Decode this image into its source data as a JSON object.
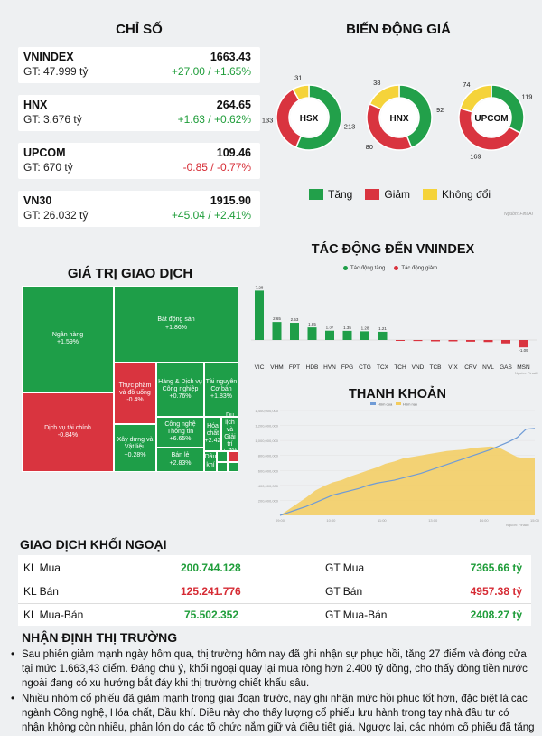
{
  "indices": {
    "title": "CHỈ SỐ",
    "items": [
      {
        "name": "VNINDEX",
        "gt": "GT: 47.999 tỷ",
        "value": "1663.43",
        "change": "+27.00 / +1.65%",
        "dir": "up"
      },
      {
        "name": "HNX",
        "gt": "GT: 3.676 tỷ",
        "value": "264.65",
        "change": "+1.63 / +0.62%",
        "dir": "up"
      },
      {
        "name": "UPCOM",
        "gt": "GT: 670 tỷ",
        "value": "109.46",
        "change": "-0.85 / -0.77%",
        "dir": "down"
      },
      {
        "name": "VN30",
        "gt": "GT: 26.032 tỷ",
        "value": "1915.90",
        "change": "+45.04 / +2.41%",
        "dir": "up"
      }
    ]
  },
  "price_movement": {
    "title": "BIẾN ĐỘNG GIÁ",
    "legend": {
      "up": "Tăng",
      "down": "Giảm",
      "flat": "Không đổi"
    },
    "source": "Nguồn: FinaAI",
    "colors": {
      "up": "#22a04a",
      "down": "#d9343f",
      "flat": "#f5d33a"
    }
  },
  "trading_value": {
    "title": "GIÁ TRỊ GIAO DỊCH",
    "tiles": [
      {
        "label": "Ngân hàng",
        "pct": "+1.59%",
        "color": "#1e9e48"
      },
      {
        "label": "Bất động sản",
        "pct": "+1.86%",
        "color": "#1e9e48"
      },
      {
        "label": "Dịch vụ tài chính",
        "pct": "-0.84%",
        "color": "#d9343f"
      },
      {
        "label": "Thực phẩm và đồ uống",
        "pct": "-0.4%",
        "color": "#d9343f"
      },
      {
        "label": "Hàng & Dịch vụ Công nghiệp",
        "pct": "+0.76%",
        "color": "#1e9e48"
      },
      {
        "label": "Tài nguyên Cơ bản",
        "pct": "+1.83%",
        "color": "#1e9e48"
      },
      {
        "label": "Xây dựng và Vật liệu",
        "pct": "+0.28%",
        "color": "#1e9e48"
      },
      {
        "label": "Công nghệ Thông tin",
        "pct": "+6.65%",
        "color": "#1e9e48"
      },
      {
        "label": "Hóa chất",
        "pct": "+2.42",
        "color": "#1e9e48"
      },
      {
        "label": "Du lịch và Giải trí",
        "pct": "+.7%",
        "color": "#1e9e48"
      },
      {
        "label": "Bán lẻ",
        "pct": "+2.83%",
        "color": "#1e9e48"
      },
      {
        "label": "Dầu khí",
        "pct": "",
        "color": "#1e9e48"
      },
      {
        "label": "",
        "pct": "",
        "color": "#1e9e48"
      },
      {
        "label": "",
        "pct": "",
        "color": "#d9343f"
      },
      {
        "label": "",
        "pct": "",
        "color": "#1e9e48"
      },
      {
        "label": "",
        "pct": "",
        "color": "#1e9e48"
      }
    ]
  },
  "impact": {
    "title": "TÁC ĐỘNG ĐẾN VNINDEX",
    "legend": {
      "up": "Tác động tăng",
      "down": "Tác động giảm"
    },
    "source": "Nguồn: FinaAI",
    "colors": {
      "up": "#1e9e48",
      "down": "#d9343f"
    }
  },
  "liquidity": {
    "title": "THANH KHOẢN",
    "legend": [
      "Hôm qua",
      "Hôm nay"
    ],
    "source": "Nguồn: FinaAI",
    "colors": {
      "today": "#f3cc5e",
      "yesterday": "#6f9bd6"
    }
  },
  "foreign": {
    "title": "GIAO DỊCH KHỐI NGOẠI",
    "rows": [
      {
        "l1": "KL Mua",
        "v1": "200.744.128",
        "c1": "up",
        "l2": "GT Mua",
        "v2": "7365.66 tỷ",
        "c2": "up"
      },
      {
        "l1": "KL Bán",
        "v1": "125.241.776",
        "c1": "down",
        "l2": "GT Bán",
        "v2": "4957.38 tỷ",
        "c2": "down"
      },
      {
        "l1": "KL Mua-Bán",
        "v1": "75.502.352",
        "c1": "up",
        "l2": "GT Mua-Bán",
        "v2": "2408.27 tỷ",
        "c2": "up"
      }
    ]
  },
  "commentary": {
    "title": "NHẬN ĐỊNH THỊ TRƯỜNG",
    "bullets": [
      "Sau phiên giảm mạnh ngày hôm qua, thị trường hôm nay đã ghi nhận sự phục hồi, tăng 27 điểm và đóng cửa tại mức 1.663,43 điểm. Đáng chú ý, khối ngoại quay lại mua ròng hơn 2.400 tỷ đồng, cho thấy dòng tiền nước ngoài đang có xu hướng bắt đáy khi thị trường chiết khấu sâu.",
      "Nhiều nhóm cổ phiếu đã giảm mạnh trong giai đoạn trước, nay ghi nhận mức hồi phục tốt hơn, đặc biệt là các ngành Công nghệ, Hóa chất, Dầu khí. Điều này cho thấy lượng cổ phiếu lưu hành trong tay nhà đầu tư có nhận không còn nhiều, phần lớn do các tổ chức nắm giữ và điều tiết giá. Ngược lại, các nhóm cổ phiếu đã tăng"
    ]
  },
  "chart_data": [
    {
      "type": "pie",
      "title": "",
      "series": [
        {
          "name": "HSX",
          "values": [
            213,
            133,
            31
          ]
        },
        {
          "name": "HNX",
          "values": [
            92,
            80,
            38
          ]
        },
        {
          "name": "UPCOM",
          "values": [
            119,
            169,
            74
          ]
        }
      ],
      "categories": [
        "Tăng",
        "Giảm",
        "Không đổi"
      ]
    },
    {
      "type": "bar",
      "title": "TÁC ĐỘNG ĐẾN VNINDEX",
      "categories": [
        "VIC",
        "VHM",
        "FPT",
        "HDB",
        "HVN",
        "FPG",
        "CTG",
        "TCX",
        "TCH",
        "VND",
        "TCB",
        "VIX",
        "CRV",
        "NVL",
        "GAS",
        "MSN"
      ],
      "values": [
        7.28,
        2.65,
        2.53,
        1.85,
        1.37,
        1.35,
        1.28,
        1.21,
        -0.05,
        -0.15,
        -0.2,
        -0.2,
        -0.25,
        -0.3,
        -0.5,
        -1.09
      ],
      "labels": [
        "7.28",
        "2.65",
        "2.53",
        "1.85",
        "1.37",
        "1.35",
        "1.28",
        "1.21",
        "",
        "",
        "",
        "",
        "",
        "",
        "",
        "-1.09"
      ],
      "ylim": [
        -2,
        8
      ]
    },
    {
      "type": "area",
      "title": "THANH KHOẢN",
      "y_ticks": [
        "1,400,000,000",
        "1,200,000,000",
        "1,000,000,000",
        "800,000,000",
        "600,000,000",
        "400,000,000",
        "200,000,000"
      ],
      "x_ticks": [
        "09:00",
        "10:00",
        "11:00",
        "13:00",
        "14:00",
        "15:00"
      ],
      "series": [
        {
          "name": "Hôm nay",
          "values": [
            0,
            80,
            160,
            240,
            330,
            390,
            440,
            470,
            520,
            560,
            600,
            640,
            690,
            720,
            760,
            780,
            800,
            820,
            840,
            860,
            870,
            880,
            900,
            910,
            920,
            900,
            840,
            780,
            760,
            760
          ]
        },
        {
          "name": "Hôm qua",
          "values": [
            0,
            40,
            80,
            120,
            170,
            220,
            270,
            300,
            330,
            360,
            400,
            430,
            450,
            470,
            500,
            530,
            560,
            600,
            640,
            680,
            720,
            760,
            800,
            840,
            880,
            930,
            980,
            1040,
            1150,
            1160
          ]
        }
      ],
      "ylim": [
        0,
        1400
      ]
    }
  ]
}
